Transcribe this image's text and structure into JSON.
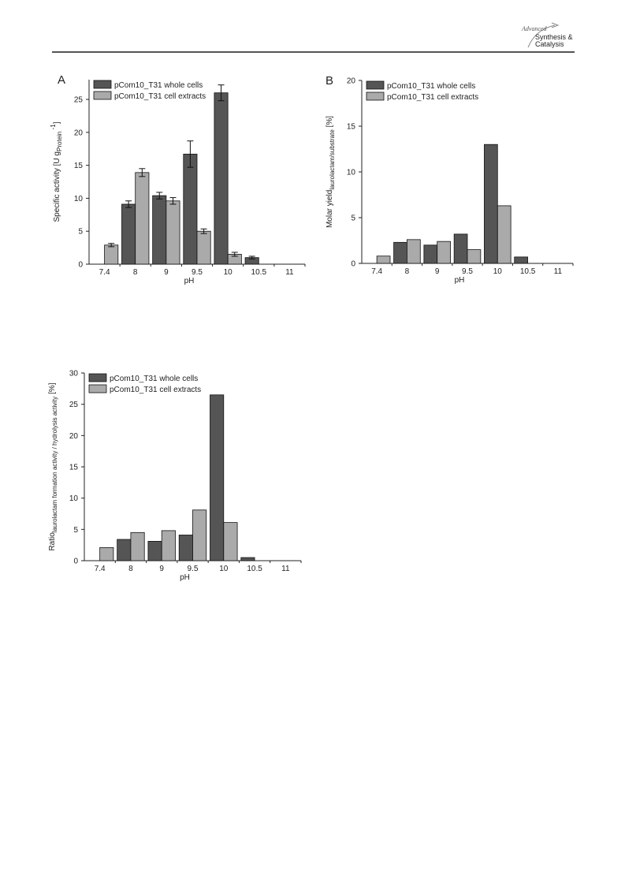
{
  "header": {
    "logo_line1": "Advanced",
    "logo_line2": "Synthesis &",
    "logo_line3": "Catalysis"
  },
  "colors": {
    "whole_cells": "#555555",
    "cell_extracts": "#aaaaaa",
    "axis": "#222222"
  },
  "chart_data": [
    {
      "type": "bar",
      "panel_label": "A",
      "categories": [
        "7.4",
        "8",
        "9",
        "9.5",
        "10",
        "10.5",
        "11"
      ],
      "xlabel": "pH",
      "ylabel": "Specific activity [U g",
      "ylabel_sub": "Protein",
      "ylabel_sup": "-1",
      "ylabel_end": "]",
      "ylim": [
        0,
        28
      ],
      "yticks": [
        0,
        5,
        10,
        15,
        20,
        25
      ],
      "legend_position": "top-left",
      "series": [
        {
          "name": "pCom10_T31 whole cells",
          "values": [
            null,
            9.1,
            10.4,
            16.7,
            26.0,
            1.0,
            null
          ],
          "errors": [
            null,
            0.5,
            0.5,
            2.0,
            1.2,
            0.2,
            null
          ]
        },
        {
          "name": "pCom10_T31 cell extracts",
          "values": [
            2.9,
            13.9,
            9.6,
            5.0,
            1.5,
            null,
            null
          ],
          "errors": [
            0.25,
            0.6,
            0.5,
            0.35,
            0.3,
            null,
            null
          ]
        }
      ]
    },
    {
      "type": "bar",
      "panel_label": "B",
      "categories": [
        "7.4",
        "8",
        "9",
        "9.5",
        "10",
        "10.5",
        "11"
      ],
      "xlabel": "pH",
      "ylabel": "Molar yield",
      "ylabel_sub": "laurolactam/substrate",
      "ylabel_end": " [%]",
      "ylim": [
        0,
        20
      ],
      "yticks": [
        0,
        5,
        10,
        15,
        20
      ],
      "legend_position": "top-left",
      "series": [
        {
          "name": "pCom10_T31 whole cells",
          "values": [
            null,
            2.3,
            2.0,
            3.2,
            13.0,
            0.7,
            null
          ]
        },
        {
          "name": "pCom10_T31 cell extracts",
          "values": [
            0.8,
            2.6,
            2.4,
            1.5,
            6.3,
            null,
            null
          ]
        }
      ]
    },
    {
      "type": "bar",
      "panel_label": "",
      "categories": [
        "7.4",
        "8",
        "9",
        "9.5",
        "10",
        "10.5",
        "11"
      ],
      "xlabel": "pH",
      "ylabel": "Ratio",
      "ylabel_sub": "laurolactam formation activity / hydrolysis activity",
      "ylabel_end": " [%]",
      "ylim": [
        0,
        30
      ],
      "yticks": [
        0,
        5,
        10,
        15,
        20,
        25,
        30
      ],
      "legend_position": "top-left",
      "series": [
        {
          "name": "pCom10_T31 whole cells",
          "values": [
            null,
            3.4,
            3.1,
            4.1,
            26.5,
            0.5,
            null
          ]
        },
        {
          "name": "pCom10_T31 cell extracts",
          "values": [
            2.1,
            4.5,
            4.8,
            8.1,
            6.1,
            null,
            null
          ]
        }
      ]
    }
  ]
}
